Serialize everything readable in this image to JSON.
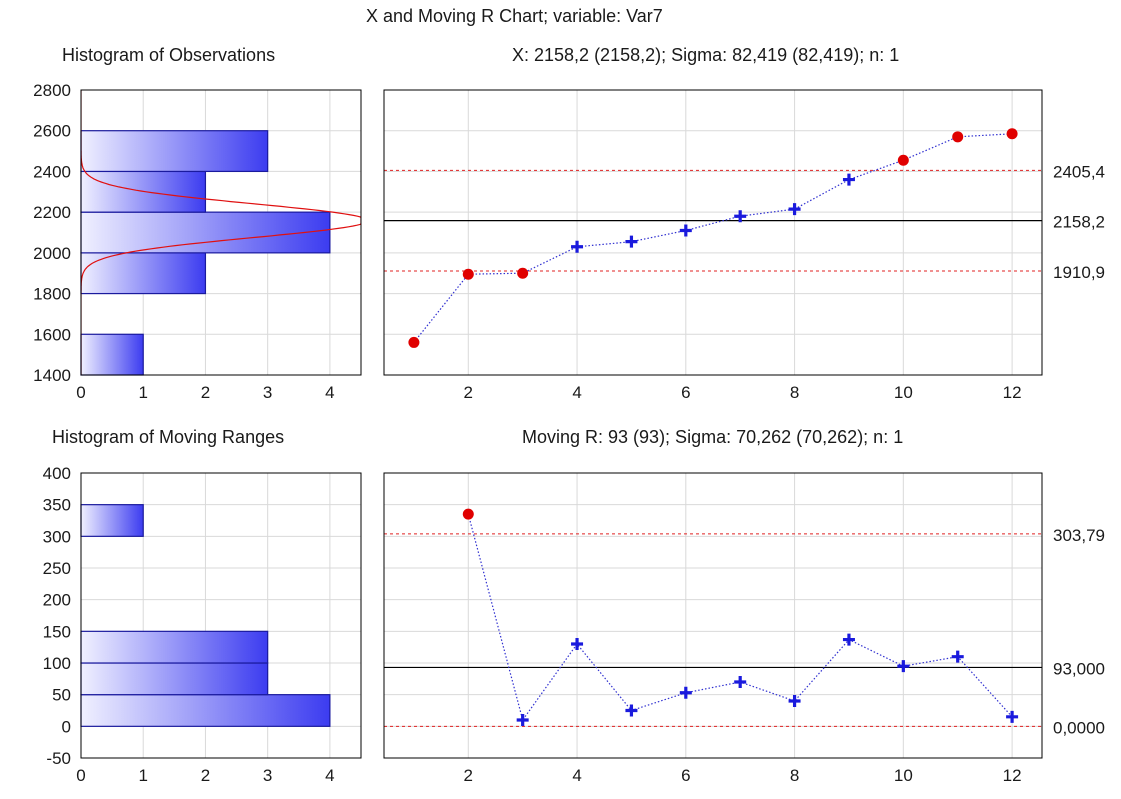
{
  "title": "X and Moving R Chart; variable:  Var7",
  "subtitles": {
    "hist_x": "Histogram of Observations",
    "x_info": "X: 2158,2 (2158,2); Sigma: 82,419 (82,419); n: 1",
    "hist_mr": "Histogram of Moving Ranges",
    "mr_info": "Moving R: 93 (93); Sigma: 70,262 (70,262); n: 1"
  },
  "colors": {
    "bar_light": "#f0f0ff",
    "bar_dark": "#3c3cf0",
    "bar_edge": "#1a1a9e",
    "normal_curve": "#e01010",
    "control_limit": "#e02020",
    "center_line": "#000000",
    "series_line": "#3030d0",
    "in_control_marker": "#1a1add",
    "out_of_control_marker": "#e00000",
    "grid": "#d9d9d9"
  },
  "chart_data": [
    {
      "id": "hist_x",
      "type": "bar",
      "orientation": "horizontal",
      "title": "Histogram of Observations",
      "bins": [
        {
          "from": 1400,
          "to": 1600,
          "count": 1
        },
        {
          "from": 1600,
          "to": 1800,
          "count": 0
        },
        {
          "from": 1800,
          "to": 2000,
          "count": 2
        },
        {
          "from": 2000,
          "to": 2200,
          "count": 4
        },
        {
          "from": 2200,
          "to": 2400,
          "count": 2
        },
        {
          "from": 2400,
          "to": 2600,
          "count": 3
        }
      ],
      "xlim": [
        0,
        4.5
      ],
      "ylim": [
        1400,
        2800
      ],
      "x_ticks": [
        0,
        1,
        2,
        3,
        4
      ],
      "y_ticks": [
        1400,
        1600,
        1800,
        2000,
        2200,
        2400,
        2600,
        2800
      ],
      "normal_curve": {
        "mean": 2158.2,
        "sigma": 82.419,
        "peak_count": 4.6
      },
      "grid": true
    },
    {
      "id": "x_chart",
      "type": "line",
      "title": "X: 2158,2 (2158,2); Sigma: 82,419 (82,419); n: 1",
      "x": [
        1,
        2,
        3,
        4,
        5,
        6,
        7,
        8,
        9,
        10,
        11,
        12
      ],
      "values": [
        1560,
        1895,
        1900,
        2030,
        2055,
        2110,
        2180,
        2215,
        2360,
        2455,
        2570,
        2585
      ],
      "out_of_control": [
        true,
        true,
        true,
        false,
        false,
        false,
        false,
        false,
        false,
        true,
        true,
        true
      ],
      "center": 2158.2,
      "ucl": 2405.4,
      "lcl": 1910.9,
      "limit_labels": {
        "ucl": "2405,4",
        "center": "2158,2",
        "lcl": "1910,9"
      },
      "xlim": [
        0.45,
        12.55
      ],
      "ylim": [
        1400,
        2800
      ],
      "x_ticks": [
        2,
        4,
        6,
        8,
        10,
        12
      ],
      "grid": true
    },
    {
      "id": "hist_mr",
      "type": "bar",
      "orientation": "horizontal",
      "title": "Histogram of Moving Ranges",
      "bins": [
        {
          "from": 0,
          "to": 50,
          "count": 4
        },
        {
          "from": 50,
          "to": 100,
          "count": 3
        },
        {
          "from": 100,
          "to": 150,
          "count": 3
        },
        {
          "from": 150,
          "to": 200,
          "count": 0
        },
        {
          "from": 200,
          "to": 250,
          "count": 0
        },
        {
          "from": 250,
          "to": 300,
          "count": 0
        },
        {
          "from": 300,
          "to": 350,
          "count": 1
        }
      ],
      "xlim": [
        0,
        4.5
      ],
      "ylim": [
        -50,
        400
      ],
      "x_ticks": [
        0,
        1,
        2,
        3,
        4
      ],
      "y_ticks": [
        -50,
        0,
        50,
        100,
        150,
        200,
        250,
        300,
        350,
        400
      ],
      "grid": true
    },
    {
      "id": "mr_chart",
      "type": "line",
      "title": "Moving R: 93 (93); Sigma: 70,262 (70,262); n: 1",
      "x": [
        2,
        3,
        4,
        5,
        6,
        7,
        8,
        9,
        10,
        11,
        12
      ],
      "values": [
        335,
        10,
        130,
        25,
        53,
        70,
        40,
        137,
        95,
        110,
        15
      ],
      "out_of_control": [
        true,
        false,
        false,
        false,
        false,
        false,
        false,
        false,
        false,
        false,
        false
      ],
      "center": 93,
      "ucl": 303.79,
      "lcl": 0,
      "limit_labels": {
        "ucl": "303,79",
        "center": "93,000",
        "lcl": "0,0000"
      },
      "xlim": [
        0.45,
        12.55
      ],
      "ylim": [
        -50,
        400
      ],
      "x_ticks": [
        2,
        4,
        6,
        8,
        10,
        12
      ],
      "grid": true
    }
  ]
}
